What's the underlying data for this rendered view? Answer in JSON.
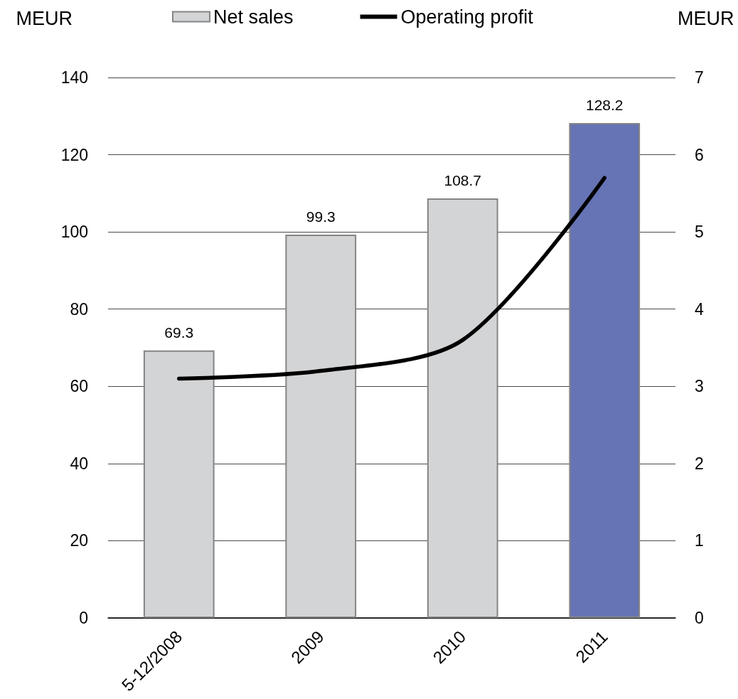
{
  "chart_data": {
    "type": "bar",
    "categories": [
      "5-12/2008",
      "2009",
      "2010",
      "2011"
    ],
    "ylabel": "MEUR",
    "y2label": "MEUR",
    "series": [
      {
        "name": "Net sales",
        "color": "#d3d4d6",
        "colors": [
          "#d3d4d6",
          "#d3d4d6",
          "#d3d4d6",
          "#6673b4"
        ],
        "values": [
          69.3,
          99.3,
          108.7,
          128.2
        ],
        "value_labels": [
          "69.3",
          "99.3",
          "108.7",
          "128.2"
        ]
      },
      {
        "name": "Operating profit",
        "type": "line",
        "axis": "y2",
        "color": "#000000",
        "values": [
          3.1,
          3.2,
          3.6,
          5.7
        ]
      }
    ],
    "ylim": [
      0,
      140
    ],
    "yticks": [
      0,
      20,
      40,
      60,
      80,
      100,
      120,
      140
    ],
    "y2lim": [
      0,
      7
    ],
    "y2ticks": [
      0,
      1,
      2,
      3,
      4,
      5,
      6,
      7
    ],
    "grid": "y",
    "legend": "top",
    "marker": "none"
  }
}
